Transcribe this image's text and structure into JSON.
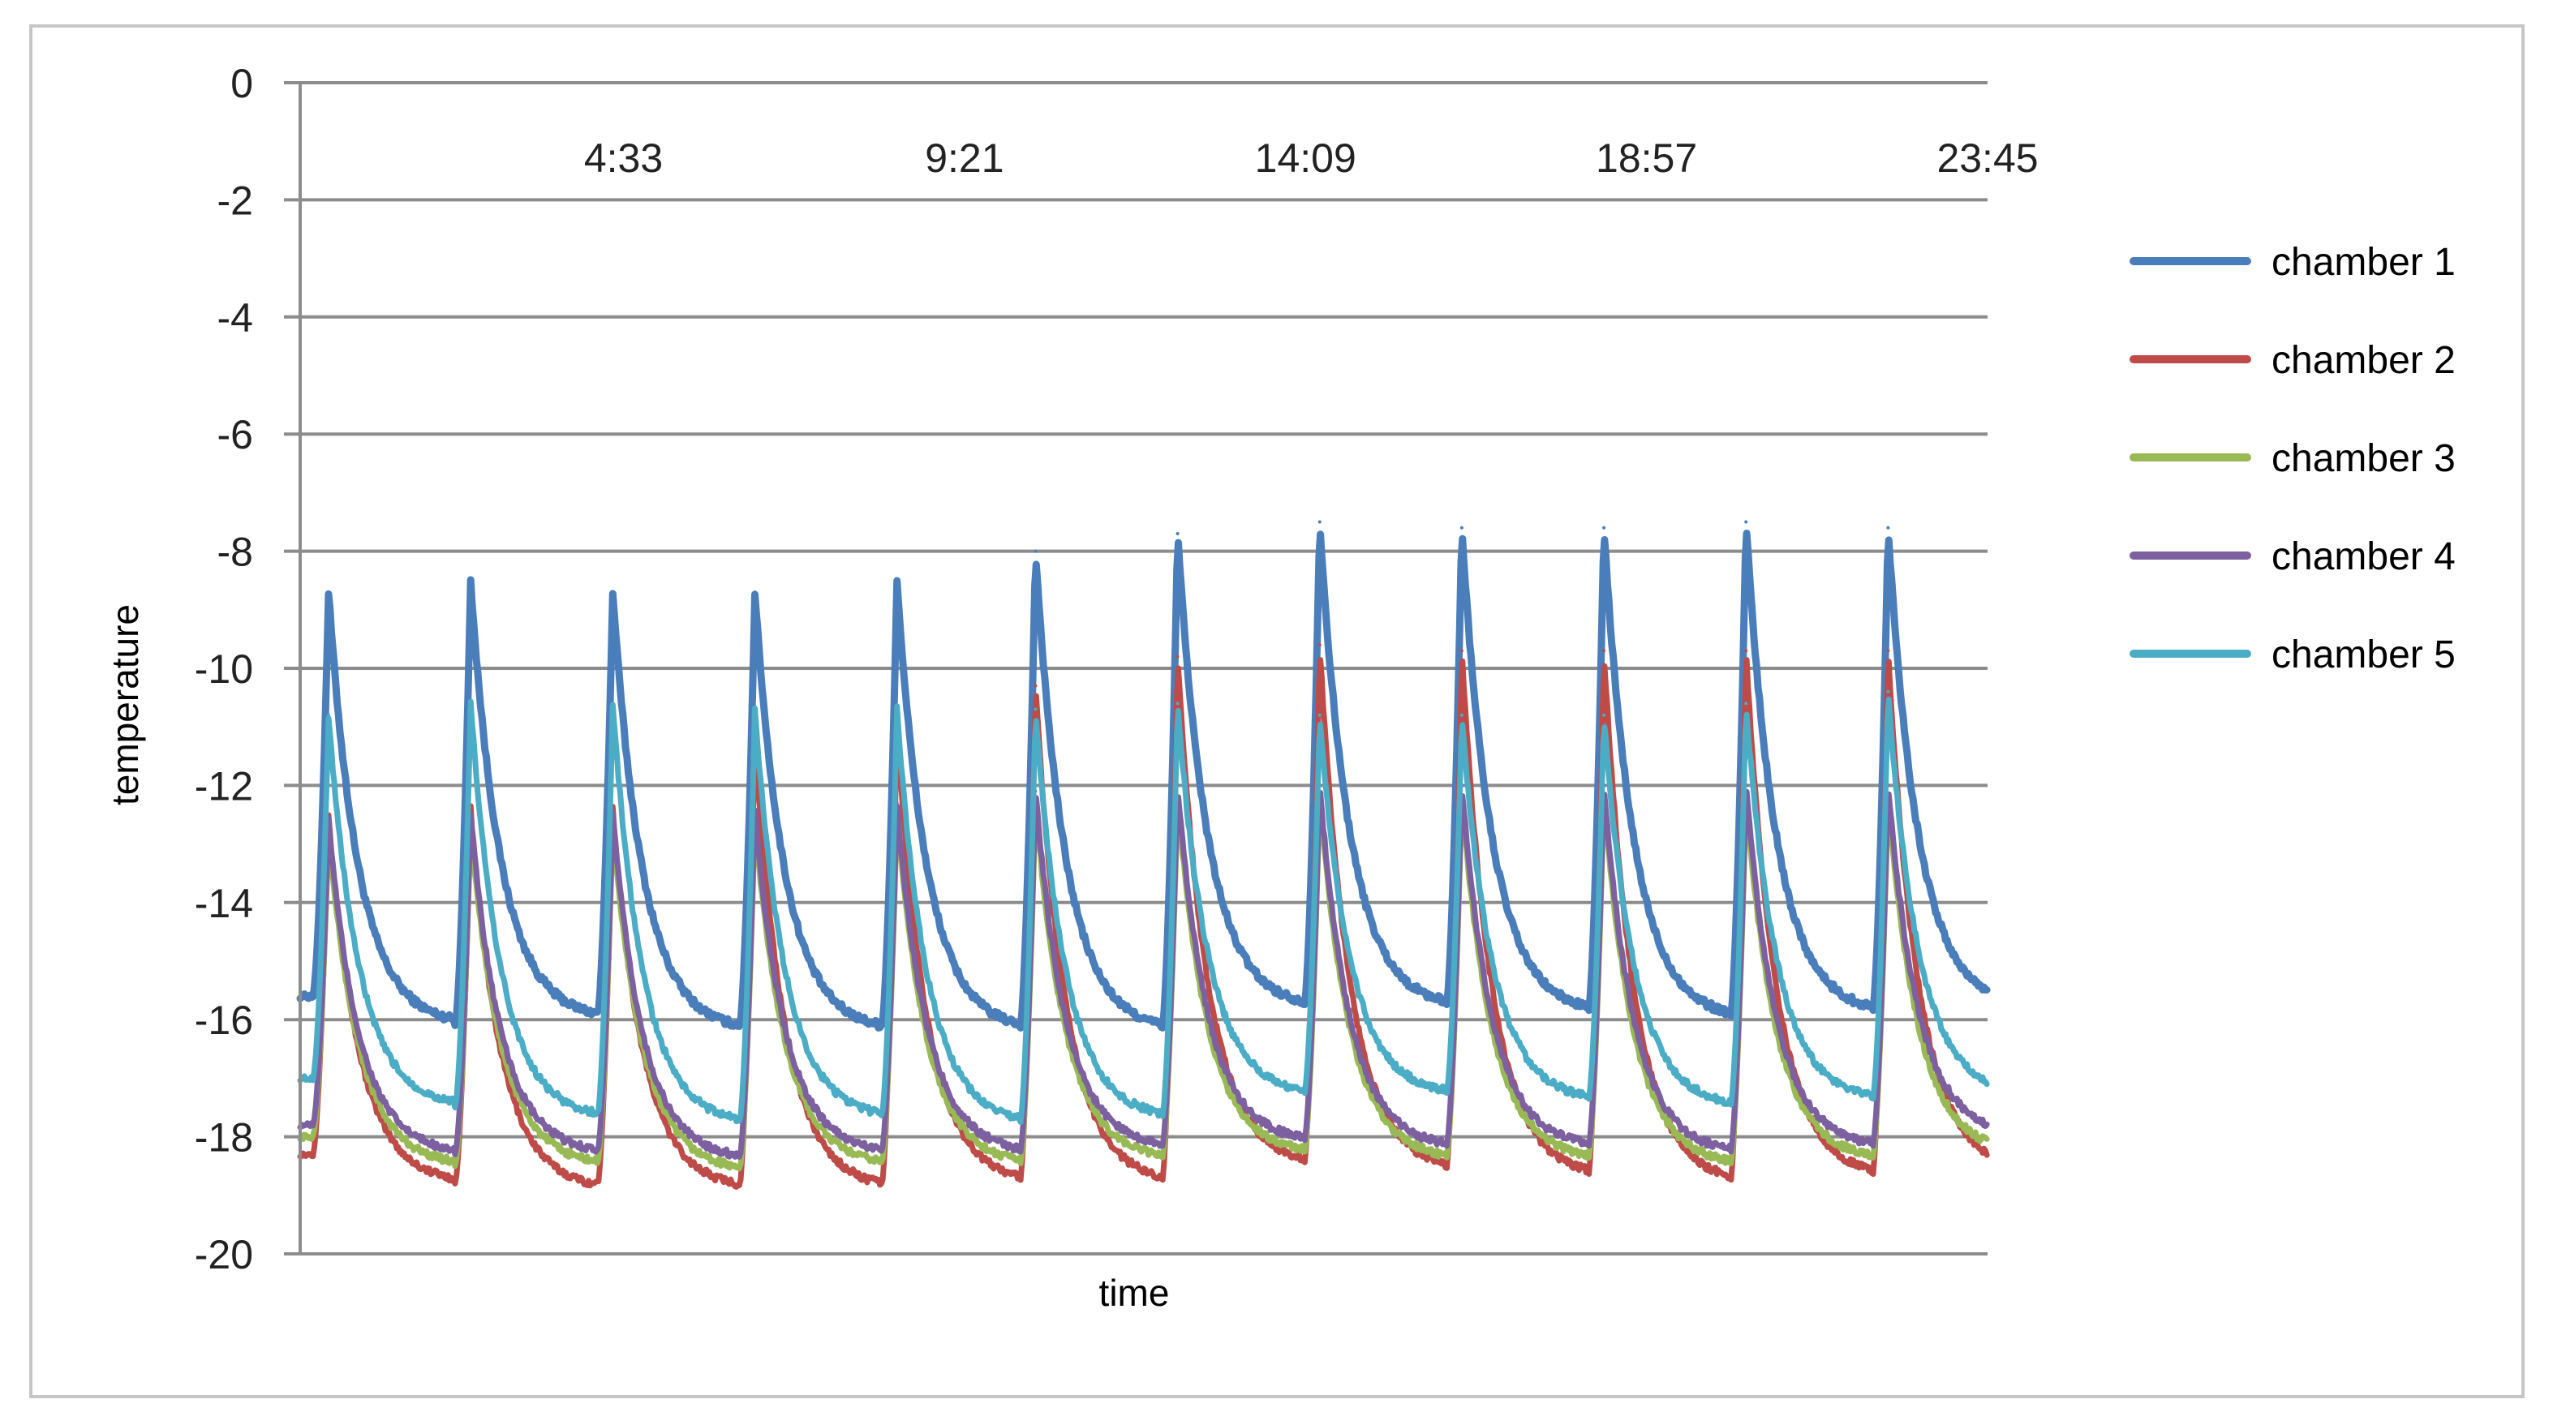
{
  "chart_data": {
    "type": "line",
    "title": "",
    "xlabel": "time",
    "ylabel": "temperature",
    "ylim": [
      -20,
      0
    ],
    "yticks": [
      "0",
      "-2",
      "-4",
      "-6",
      "-8",
      "-10",
      "-12",
      "-14",
      "-16",
      "-18",
      "-20"
    ],
    "xticks": [
      "4:33",
      "9:21",
      "14:09",
      "18:57",
      "23:45"
    ],
    "xtick_positions_hours": [
      4.55,
      9.35,
      14.15,
      18.95,
      23.75
    ],
    "xlim_hours": [
      0,
      23.75
    ],
    "x_axis_position": "top",
    "grid": "horizontal",
    "legend_position": "right",
    "cycle_peak_times_hours": [
      0.4,
      2.4,
      4.4,
      6.4,
      8.4,
      10.35,
      12.35,
      14.35,
      16.35,
      18.35,
      20.35,
      22.35
    ],
    "series": [
      {
        "name": "chamber 1",
        "color": "#4a7ebb",
        "peaks": [
          -8.7,
          -8.5,
          -8.7,
          -8.7,
          -8.5,
          -8.0,
          -7.7,
          -7.5,
          -7.6,
          -7.6,
          -7.5,
          -7.6
        ],
        "troughs": [
          -16.1,
          -16.0,
          -16.2,
          -16.2,
          -16.2,
          -16.2,
          -15.8,
          -15.8,
          -15.9,
          -16.0,
          -15.9,
          -15.8
        ]
      },
      {
        "name": "chamber 2",
        "color": "#be4b48",
        "peaks": [
          -12.5,
          -12.4,
          -12.4,
          -11.2,
          -11.0,
          -10.3,
          -9.8,
          -9.6,
          -9.7,
          -9.7,
          -9.7,
          -9.7
        ],
        "troughs": [
          -18.8,
          -18.9,
          -18.9,
          -18.9,
          -18.8,
          -18.8,
          -18.5,
          -18.6,
          -18.7,
          -18.8,
          -18.7,
          -18.6
        ]
      },
      {
        "name": "chamber 3",
        "color": "#98b954",
        "peaks": [
          -12.8,
          -12.7,
          -12.7,
          -12.6,
          -12.5,
          -12.3,
          -12.2,
          -12.2,
          -12.2,
          -12.2,
          -12.2,
          -12.2
        ],
        "troughs": [
          -18.5,
          -18.5,
          -18.6,
          -18.5,
          -18.5,
          -18.4,
          -18.3,
          -18.4,
          -18.4,
          -18.5,
          -18.4,
          -18.3
        ]
      },
      {
        "name": "chamber 4",
        "color": "#7d60a0",
        "peaks": [
          -12.6,
          -12.5,
          -12.5,
          -12.4,
          -12.3,
          -12.1,
          -12.0,
          -12.0,
          -12.0,
          -12.0,
          -12.0,
          -12.0
        ],
        "troughs": [
          -18.3,
          -18.3,
          -18.4,
          -18.3,
          -18.3,
          -18.2,
          -18.1,
          -18.2,
          -18.2,
          -18.3,
          -18.2,
          -18.0
        ]
      },
      {
        "name": "chamber 5",
        "color": "#4bacc6",
        "peaks": [
          -10.8,
          -10.6,
          -10.6,
          -10.7,
          -10.7,
          -10.7,
          -10.6,
          -10.8,
          -10.8,
          -10.8,
          -10.6,
          -10.4
        ],
        "troughs": [
          -17.5,
          -17.7,
          -17.8,
          -17.7,
          -17.8,
          -17.7,
          -17.3,
          -17.3,
          -17.4,
          -17.5,
          -17.4,
          -17.3
        ]
      }
    ]
  }
}
